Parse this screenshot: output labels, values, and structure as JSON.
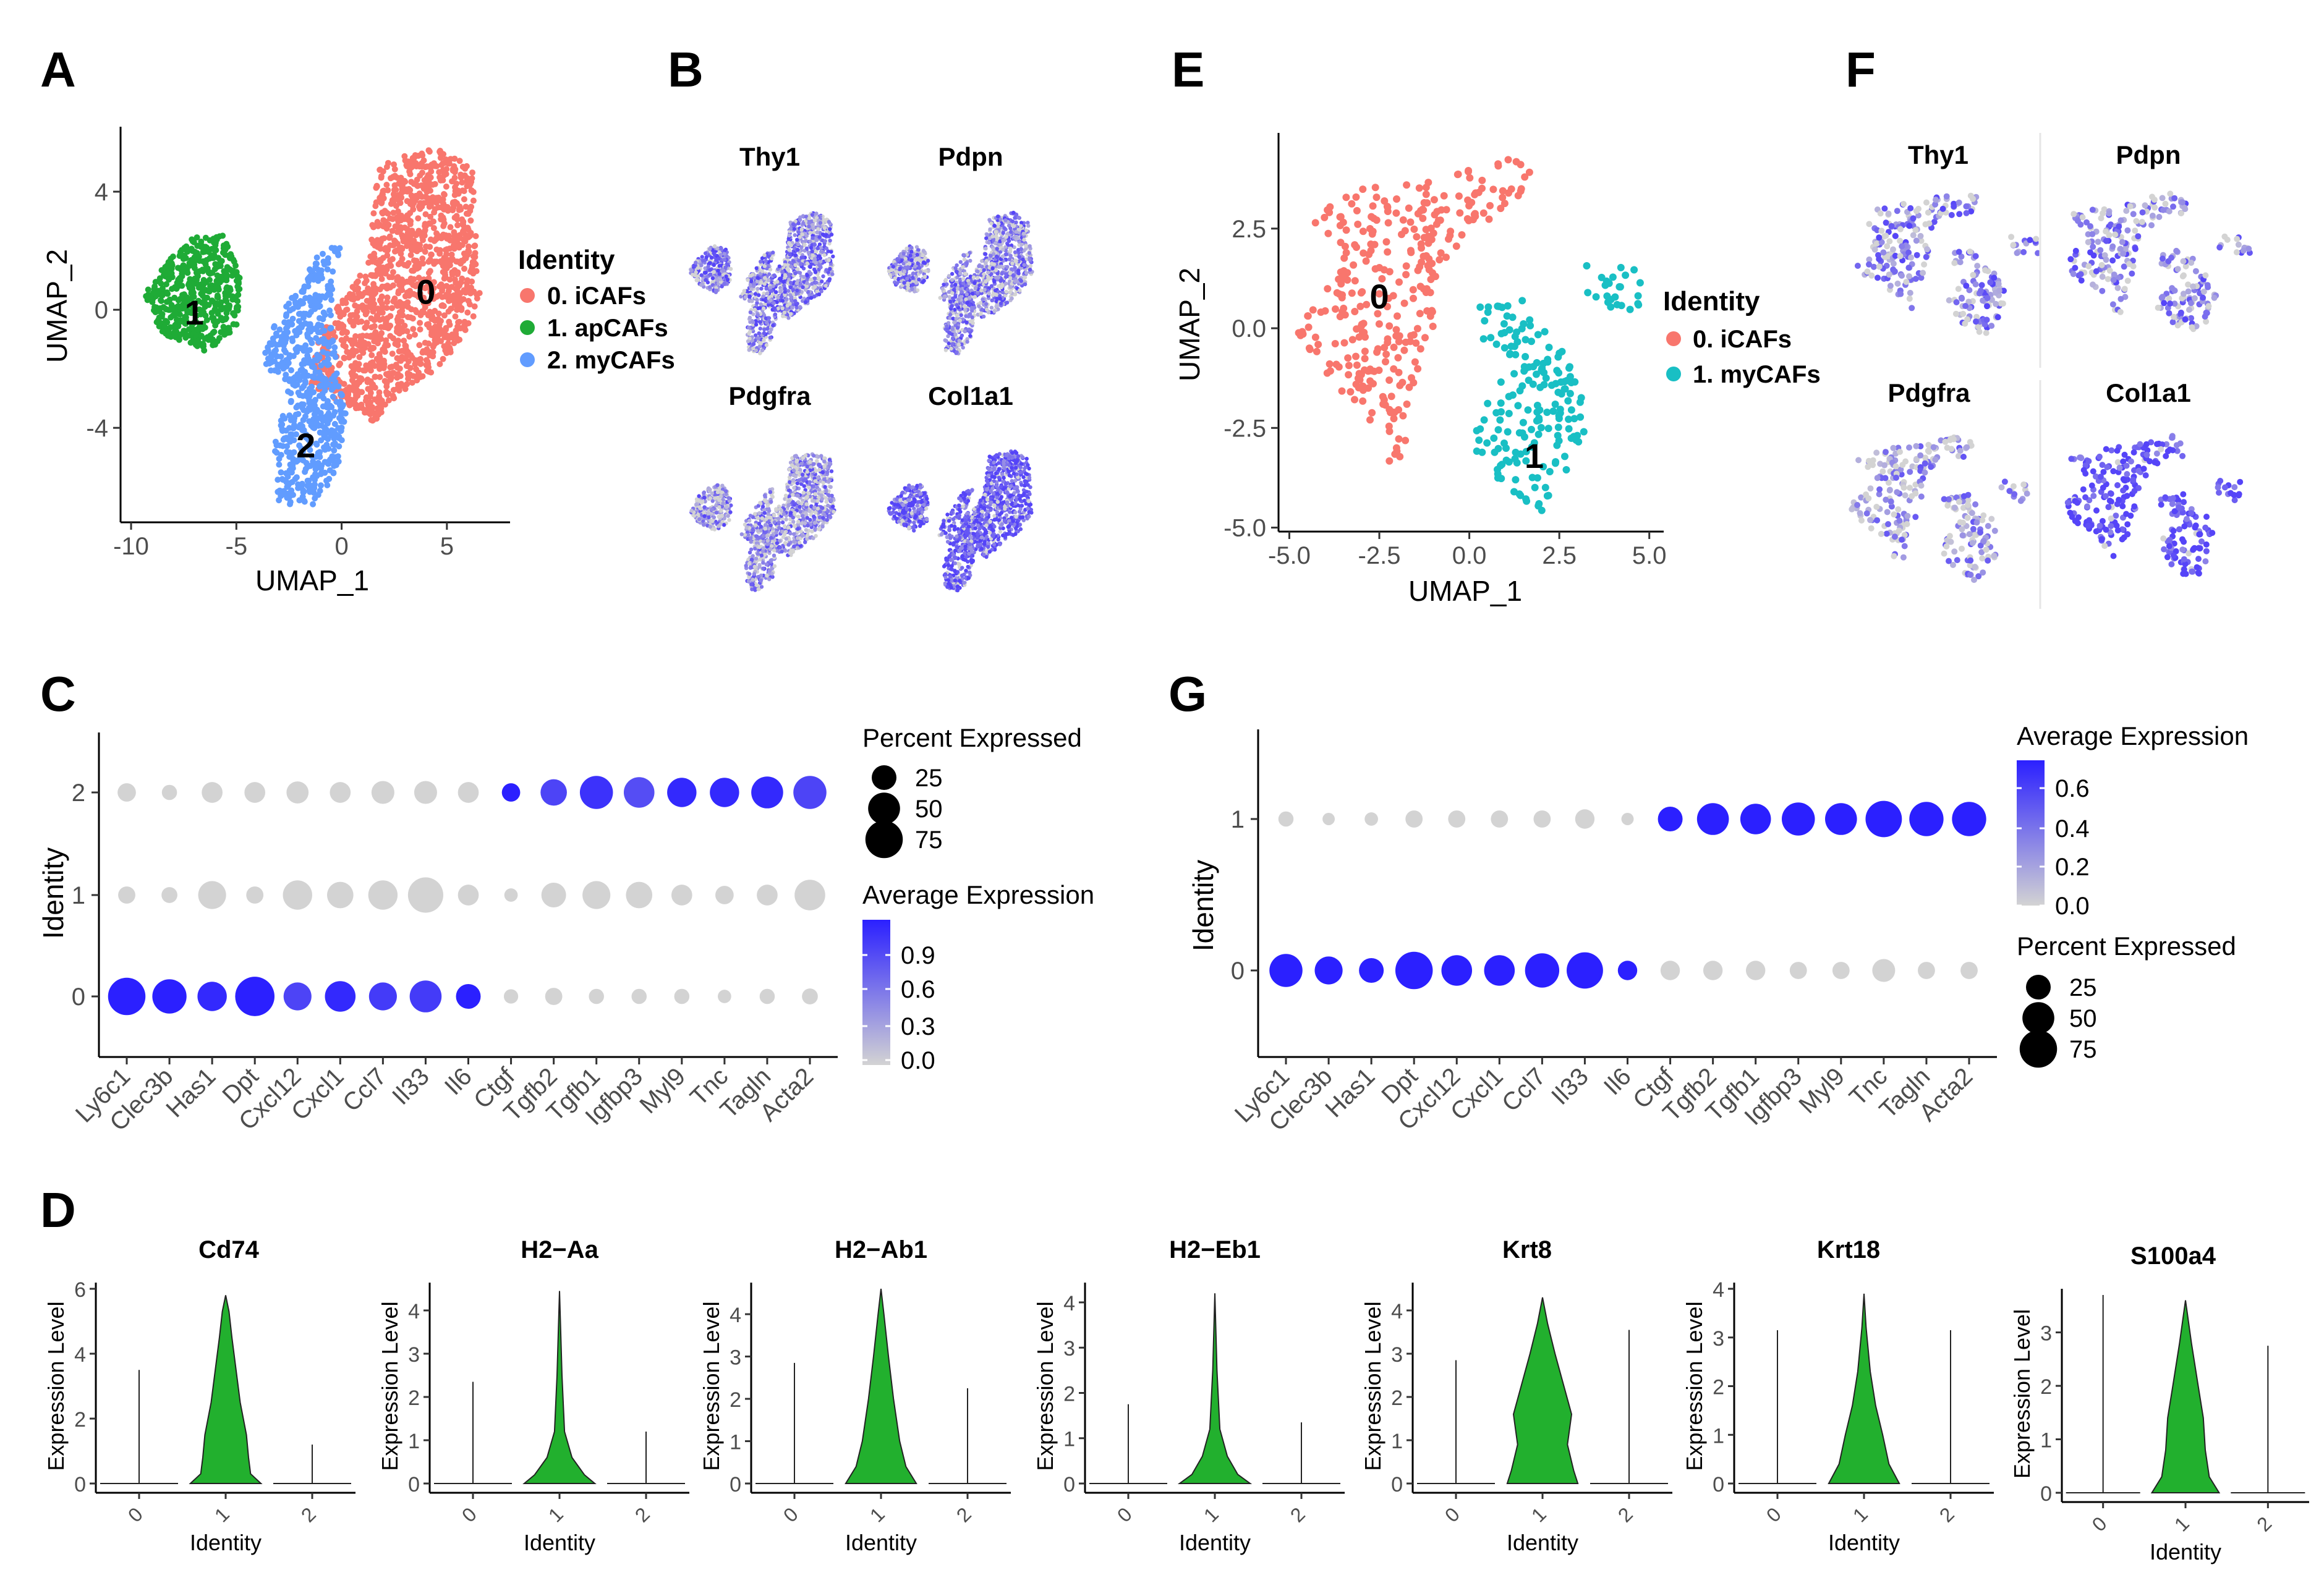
{
  "panel_labels": {
    "A": "A",
    "B": "B",
    "C": "C",
    "D": "D",
    "E": "E",
    "F": "F",
    "G": "G"
  },
  "colors": {
    "iCAF": "#f8766d",
    "apCAF": "#1fab36",
    "myCAF": "#619cff",
    "myCAF_teal": "#19bfc4",
    "expr_low": "#d3d3d3",
    "expr_high": "#3333ff",
    "violin": "#22b02e"
  },
  "chart_data": [
    {
      "id": "A",
      "type": "scatter",
      "title": "",
      "xlabel": "UMAP_1",
      "ylabel": "UMAP_2",
      "xlim": [
        -10.5,
        8
      ],
      "ylim": [
        -7.2,
        6.2
      ],
      "xticks": [
        -10,
        -5,
        0,
        5
      ],
      "xtick_labels": [
        "-10",
        "-5",
        "0",
        "5"
      ],
      "yticks": [
        4,
        0,
        -4
      ],
      "ytick_labels": [
        "4",
        "0",
        "-4"
      ],
      "legend_title": "Identity",
      "legend": [
        "0. iCAFs",
        "1. apCAFs",
        "2. myCAFs"
      ],
      "cluster_labels": [
        "0",
        "1",
        "2"
      ],
      "clusters": [
        {
          "name": "0. iCAFs",
          "color": "#f8766d",
          "polygon": [
            [
              1.8,
              5.0
            ],
            [
              4.5,
              5.5
            ],
            [
              6.2,
              4.8
            ],
            [
              6.4,
              2.5
            ],
            [
              6.6,
              0.2
            ],
            [
              5.5,
              -1.2
            ],
            [
              4.5,
              -2.0
            ],
            [
              3.0,
              -2.8
            ],
            [
              1.5,
              -3.8
            ],
            [
              0.0,
              -3.2
            ],
            [
              -1.5,
              -2.5
            ],
            [
              -1.2,
              -1.0
            ],
            [
              0.2,
              0.5
            ],
            [
              1.2,
              1.5
            ],
            [
              1.5,
              3.5
            ]
          ],
          "n": 1300
        },
        {
          "name": "1. apCAFs",
          "color": "#1fab36",
          "polygon": [
            [
              -8.5,
              1.5
            ],
            [
              -7.0,
              2.6
            ],
            [
              -5.5,
              2.5
            ],
            [
              -4.8,
              1.0
            ],
            [
              -5.0,
              -0.6
            ],
            [
              -6.5,
              -1.5
            ],
            [
              -8.5,
              -0.8
            ],
            [
              -9.5,
              0.4
            ]
          ],
          "n": 500
        },
        {
          "name": "2. myCAFs",
          "color": "#619cff",
          "polygon": [
            [
              -1.0,
              2.0
            ],
            [
              0.0,
              2.2
            ],
            [
              -0.5,
              0.5
            ],
            [
              -0.3,
              -1.5
            ],
            [
              0.2,
              -3.5
            ],
            [
              -0.2,
              -5.5
            ],
            [
              -1.5,
              -6.8
            ],
            [
              -3.0,
              -6.5
            ],
            [
              -3.2,
              -4.5
            ],
            [
              -2.5,
              -2.6
            ],
            [
              -3.8,
              -1.8
            ],
            [
              -3.2,
              -0.5
            ],
            [
              -2.0,
              0.8
            ]
          ],
          "n": 600
        }
      ]
    },
    {
      "id": "B",
      "type": "scatter-feature",
      "genes": [
        "Thy1",
        "Pdpn",
        "Pdgfra",
        "Col1a1"
      ],
      "color_low": "#d3d3d3",
      "color_high": "#3f2bff",
      "mean_expression": [
        0.65,
        0.6,
        0.55,
        0.85
      ]
    },
    {
      "id": "C",
      "type": "dotplot",
      "xlabel": "",
      "ylabel": "Identity",
      "categories": [
        "Ly6c1",
        "Clec3b",
        "Has1",
        "Dpt",
        "Cxcl12",
        "Cxcl1",
        "Ccl7",
        "Il33",
        "Il6",
        "Ctgf",
        "Tgfb2",
        "Tgfb1",
        "Igfbp3",
        "Myl9",
        "Tnc",
        "Tagln",
        "Acta2"
      ],
      "rows": [
        "0",
        "1",
        "2"
      ],
      "avg_expression": [
        [
          1.0,
          1.0,
          0.95,
          1.0,
          0.8,
          0.95,
          0.85,
          0.85,
          1.0,
          0.0,
          0.0,
          0.0,
          0.0,
          0.0,
          0.0,
          0.0,
          0.0
        ],
        [
          0.0,
          0.0,
          0.0,
          0.0,
          0.0,
          0.0,
          0.0,
          0.0,
          0.0,
          0.0,
          0.0,
          0.0,
          0.0,
          0.0,
          0.0,
          0.0,
          0.0
        ],
        [
          0.0,
          0.0,
          0.0,
          0.0,
          0.0,
          0.0,
          0.0,
          0.0,
          0.0,
          1.0,
          0.8,
          0.9,
          0.75,
          0.95,
          0.95,
          0.95,
          0.8
        ]
      ],
      "pct_expressed": [
        [
          75,
          60,
          40,
          85,
          35,
          45,
          35,
          50,
          25,
          4,
          8,
          5,
          5,
          5,
          3,
          5,
          6
        ],
        [
          8,
          6,
          35,
          8,
          40,
          30,
          40,
          65,
          15,
          3,
          25,
          35,
          30,
          15,
          10,
          15,
          45
        ],
        [
          10,
          5,
          15,
          15,
          18,
          15,
          20,
          20,
          15,
          10,
          30,
          55,
          45,
          40,
          40,
          50,
          55
        ]
      ],
      "size_legend_title": "Percent Expressed",
      "size_legend": [
        25,
        50,
        75
      ],
      "color_legend_title": "Average Expression",
      "color_ticks": [
        "0.9",
        "0.6",
        "0.3",
        "0.0"
      ],
      "color_range": [
        0.0,
        1.0
      ]
    },
    {
      "id": "E",
      "type": "scatter",
      "xlabel": "UMAP_1",
      "ylabel": "UMAP_2",
      "xlim": [
        -5.3,
        5.4
      ],
      "ylim": [
        -5.1,
        4.9
      ],
      "xticks": [
        -5.0,
        -2.5,
        0.0,
        2.5,
        5.0
      ],
      "xtick_labels": [
        "-5.0",
        "-2.5",
        "0.0",
        "2.5",
        "5.0"
      ],
      "yticks": [
        2.5,
        0.0,
        -2.5,
        -5.0
      ],
      "ytick_labels": [
        "2.5",
        "0.0",
        "-2.5",
        "-5.0"
      ],
      "legend_title": "Identity",
      "legend": [
        "0. iCAFs",
        "1. myCAFs"
      ],
      "cluster_labels": [
        "0",
        "1"
      ],
      "clusters": [
        {
          "name": "0. iCAFs",
          "color": "#f8766d",
          "polygon": [
            [
              -4.5,
              2.9
            ],
            [
              -3.0,
              3.5
            ],
            [
              -1.0,
              3.8
            ],
            [
              1.0,
              4.4
            ],
            [
              1.8,
              4.0
            ],
            [
              1.5,
              3.0
            ],
            [
              0.0,
              2.5
            ],
            [
              -0.8,
              1.5
            ],
            [
              -1.0,
              0.0
            ],
            [
              -1.5,
              -2.0
            ],
            [
              -1.8,
              -3.2
            ],
            [
              -2.3,
              -3.5
            ],
            [
              -3.0,
              -2.0
            ],
            [
              -4.3,
              -1.0
            ],
            [
              -4.8,
              0.0
            ],
            [
              -3.5,
              1.5
            ]
          ],
          "n": 320
        },
        {
          "name": "1. myCAFs",
          "color": "#19bfc4",
          "polygon": [
            [
              0.0,
              0.5
            ],
            [
              1.5,
              0.7
            ],
            [
              2.8,
              -0.8
            ],
            [
              3.2,
              -2.0
            ],
            [
              3.2,
              -3.0
            ],
            [
              2.0,
              -4.8
            ],
            [
              1.0,
              -4.0
            ],
            [
              0.0,
              -3.0
            ],
            [
              0.3,
              -2.0
            ],
            [
              1.3,
              -0.8
            ],
            [
              0.2,
              -0.2
            ]
          ],
          "n": 180
        },
        {
          "name": "1. myCAFs",
          "color": "#19bfc4",
          "polygon": [
            [
              3.2,
              1.6
            ],
            [
              4.8,
              1.5
            ],
            [
              5.0,
              0.5
            ],
            [
              4.2,
              0.2
            ],
            [
              3.3,
              0.8
            ]
          ],
          "n": 25
        }
      ]
    },
    {
      "id": "F",
      "type": "scatter-feature",
      "genes": [
        "Thy1",
        "Pdpn",
        "Pdgfra",
        "Col1a1"
      ],
      "color_low": "#d3d3d3",
      "color_high": "#3f2bff",
      "mean_expression": [
        0.6,
        0.6,
        0.45,
        0.95
      ]
    },
    {
      "id": "G",
      "type": "dotplot",
      "xlabel": "",
      "ylabel": "Identity",
      "categories": [
        "Ly6c1",
        "Clec3b",
        "Has1",
        "Dpt",
        "Cxcl12",
        "Cxcl1",
        "Ccl7",
        "Il33",
        "Il6",
        "Ctgf",
        "Tgfb2",
        "Tgfb1",
        "Igfbp3",
        "Myl9",
        "Tnc",
        "Tagln",
        "Acta2"
      ],
      "rows": [
        "0",
        "1"
      ],
      "avg_expression": [
        [
          0.7,
          0.7,
          0.7,
          0.7,
          0.7,
          0.7,
          0.7,
          0.7,
          0.7,
          0.0,
          0.0,
          0.0,
          0.0,
          0.0,
          0.0,
          0.0,
          0.0
        ],
        [
          0.0,
          0.0,
          0.0,
          0.0,
          0.0,
          0.0,
          0.0,
          0.0,
          0.0,
          0.7,
          0.7,
          0.7,
          0.7,
          0.7,
          0.7,
          0.7,
          0.7
        ]
      ],
      "pct_expressed": [
        [
          55,
          35,
          25,
          75,
          45,
          45,
          60,
          70,
          12,
          12,
          12,
          12,
          8,
          8,
          20,
          8,
          8
        ],
        [
          5,
          2,
          3,
          8,
          8,
          8,
          8,
          12,
          2,
          25,
          50,
          45,
          55,
          50,
          70,
          60,
          60
        ]
      ],
      "color_legend_title": "Average Expression",
      "color_ticks": [
        "0.6",
        "0.4",
        "0.2",
        "0.0"
      ],
      "color_range": [
        0.0,
        0.7
      ],
      "size_legend_title": "Percent Expressed",
      "size_legend": [
        25,
        50,
        75
      ]
    },
    {
      "id": "D",
      "type": "violin",
      "xlabel": "Identity",
      "ylabel": "Expression Level",
      "categories": [
        "0",
        "1",
        "2"
      ],
      "plots": [
        {
          "title": "Cd74",
          "ymax": 6,
          "yticks": [
            0,
            2,
            4,
            6
          ],
          "max_values": [
            3.5,
            5.8,
            1.2
          ],
          "peak": 5.8,
          "width_profile": [
            [
              0,
              0.85
            ],
            [
              0.3,
              0.6
            ],
            [
              0.8,
              0.55
            ],
            [
              1.5,
              0.5
            ],
            [
              2.5,
              0.35
            ],
            [
              3.5,
              0.25
            ],
            [
              4.5,
              0.15
            ],
            [
              5.3,
              0.08
            ],
            [
              5.8,
              0.0
            ]
          ]
        },
        {
          "title": "H2−Aa",
          "ymax": 4.5,
          "yticks": [
            0,
            1,
            2,
            3,
            4
          ],
          "max_values": [
            2.35,
            4.45,
            1.2
          ],
          "peak": 4.45,
          "width_profile": [
            [
              0,
              0.85
            ],
            [
              0.2,
              0.6
            ],
            [
              0.6,
              0.3
            ],
            [
              1.2,
              0.12
            ],
            [
              2.5,
              0.06
            ],
            [
              4.45,
              0.0
            ]
          ]
        },
        {
          "title": "H2−Ab1",
          "ymax": 4.6,
          "yticks": [
            0,
            1,
            2,
            3,
            4
          ],
          "max_values": [
            2.85,
            4.6,
            2.25
          ],
          "peak": 4.6,
          "width_profile": [
            [
              0,
              0.85
            ],
            [
              0.4,
              0.6
            ],
            [
              1.0,
              0.45
            ],
            [
              2.0,
              0.3
            ],
            [
              3.0,
              0.18
            ],
            [
              4.0,
              0.07
            ],
            [
              4.6,
              0.0
            ]
          ]
        },
        {
          "title": "H2−Eb1",
          "ymax": 4.3,
          "yticks": [
            0,
            1,
            2,
            3,
            4
          ],
          "max_values": [
            1.75,
            4.2,
            1.35
          ],
          "peak": 4.2,
          "width_profile": [
            [
              0,
              0.85
            ],
            [
              0.2,
              0.55
            ],
            [
              0.6,
              0.3
            ],
            [
              1.2,
              0.12
            ],
            [
              2.5,
              0.05
            ],
            [
              4.2,
              0.0
            ]
          ]
        },
        {
          "title": "Krt8",
          "ymax": 4.5,
          "yticks": [
            0,
            1,
            2,
            3,
            4
          ],
          "max_values": [
            2.85,
            4.3,
            3.55
          ],
          "peak": 4.3,
          "width_profile": [
            [
              0,
              0.85
            ],
            [
              0.3,
              0.75
            ],
            [
              0.9,
              0.6
            ],
            [
              1.6,
              0.7
            ],
            [
              2.3,
              0.5
            ],
            [
              3.0,
              0.3
            ],
            [
              3.7,
              0.12
            ],
            [
              4.3,
              0.0
            ]
          ]
        },
        {
          "title": "Krt18",
          "ymax": 4,
          "yticks": [
            0,
            1,
            2,
            3,
            4
          ],
          "max_values": [
            3.15,
            3.9,
            3.15
          ],
          "peak": 3.9,
          "width_profile": [
            [
              0,
              0.85
            ],
            [
              0.4,
              0.6
            ],
            [
              1.0,
              0.45
            ],
            [
              1.6,
              0.28
            ],
            [
              2.3,
              0.15
            ],
            [
              3.2,
              0.05
            ],
            [
              3.9,
              0.0
            ]
          ]
        },
        {
          "title": "S100a4",
          "ymax": 3.7,
          "yticks": [
            0,
            1,
            2,
            3
          ],
          "max_values": [
            3.7,
            3.6,
            2.75
          ],
          "peak": 3.6,
          "width_profile": [
            [
              0,
              0.85
            ],
            [
              0.3,
              0.6
            ],
            [
              0.8,
              0.5
            ],
            [
              1.4,
              0.45
            ],
            [
              2.0,
              0.32
            ],
            [
              2.8,
              0.15
            ],
            [
              3.6,
              0.0
            ]
          ]
        }
      ]
    }
  ]
}
